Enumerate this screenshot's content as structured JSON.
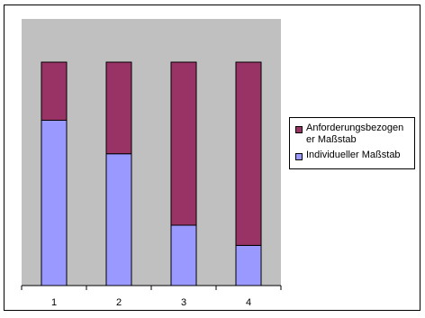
{
  "chart_data": {
    "type": "bar",
    "stacked": true,
    "categories": [
      "1",
      "2",
      "3",
      "4"
    ],
    "ylim": [
      0,
      100
    ],
    "grid": false,
    "legend_position": "right",
    "plot_background": "#c0c0c0",
    "series": [
      {
        "name": "Individueller Maßstab",
        "color": "#9999ff",
        "values": [
          74,
          59,
          27,
          18
        ]
      },
      {
        "name": "Anforderungsbezogener Maßstab",
        "color": "#993366",
        "values": [
          26,
          41,
          73,
          82
        ]
      }
    ],
    "legend_labels": [
      "Anforderungsbezogen er Maßstab",
      "Individueller Maßstab"
    ]
  }
}
